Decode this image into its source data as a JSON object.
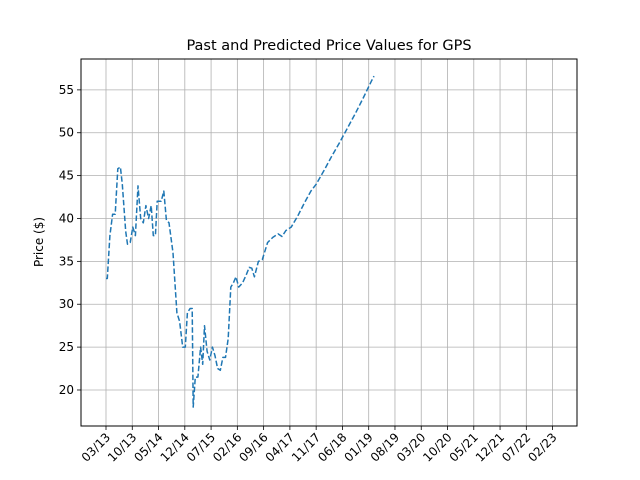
{
  "chart_data": {
    "type": "line",
    "title": "Past and Predicted Price Values for GPS",
    "xlabel": "",
    "ylabel": "Price ($)",
    "ylim": [
      15.8,
      58.6
    ],
    "grid": true,
    "x_tick_labels": [
      "03/13",
      "10/13",
      "05/14",
      "12/14",
      "07/15",
      "02/16",
      "09/16",
      "04/17",
      "11/17",
      "06/18",
      "01/19",
      "08/19",
      "03/20",
      "10/20",
      "05/21",
      "12/21",
      "07/22",
      "02/23"
    ],
    "y_ticks": [
      20,
      25,
      30,
      35,
      40,
      45,
      50,
      55
    ],
    "line_color": "#1f77b4",
    "line_style": "dashed",
    "series": [
      {
        "values": [
          [
            0.0,
            33.0
          ],
          [
            0.05,
            33.0
          ],
          [
            0.15,
            38.0
          ],
          [
            0.25,
            40.5
          ],
          [
            0.35,
            40.5
          ],
          [
            0.45,
            45.8
          ],
          [
            0.55,
            46.0
          ],
          [
            0.62,
            44.0
          ],
          [
            0.75,
            38.5
          ],
          [
            0.82,
            37.0
          ],
          [
            0.92,
            37.2
          ],
          [
            1.02,
            39.0
          ],
          [
            1.12,
            38.0
          ],
          [
            1.22,
            43.8
          ],
          [
            1.32,
            40.0
          ],
          [
            1.42,
            39.5
          ],
          [
            1.52,
            41.5
          ],
          [
            1.62,
            40.0
          ],
          [
            1.72,
            41.5
          ],
          [
            1.8,
            38.0
          ],
          [
            1.88,
            38.0
          ],
          [
            1.95,
            42.0
          ],
          [
            2.1,
            42.0
          ],
          [
            2.2,
            43.2
          ],
          [
            2.3,
            39.8
          ],
          [
            2.4,
            39.5
          ],
          [
            2.55,
            36.0
          ],
          [
            2.7,
            29.0
          ],
          [
            2.8,
            28.0
          ],
          [
            2.92,
            25.0
          ],
          [
            3.02,
            25.0
          ],
          [
            3.1,
            29.0
          ],
          [
            3.2,
            29.5
          ],
          [
            3.28,
            29.5
          ],
          [
            3.32,
            18.0
          ],
          [
            3.4,
            21.5
          ],
          [
            3.5,
            21.5
          ],
          [
            3.6,
            25.0
          ],
          [
            3.68,
            23.0
          ],
          [
            3.75,
            27.5
          ],
          [
            3.85,
            24.5
          ],
          [
            3.95,
            23.5
          ],
          [
            4.05,
            25.0
          ],
          [
            4.15,
            24.0
          ],
          [
            4.25,
            22.5
          ],
          [
            4.35,
            22.3
          ],
          [
            4.45,
            23.8
          ],
          [
            4.55,
            23.8
          ],
          [
            4.65,
            26.0
          ],
          [
            4.75,
            32.0
          ],
          [
            4.85,
            32.5
          ],
          [
            4.95,
            33.2
          ],
          [
            5.05,
            32.0
          ],
          [
            5.2,
            32.5
          ],
          [
            5.35,
            33.5
          ],
          [
            5.45,
            34.3
          ],
          [
            5.55,
            34.2
          ],
          [
            5.65,
            33.2
          ],
          [
            5.8,
            35.0
          ],
          [
            5.95,
            35.2
          ],
          [
            6.15,
            37.2
          ],
          [
            6.35,
            37.8
          ],
          [
            6.55,
            38.2
          ],
          [
            6.7,
            37.9
          ],
          [
            6.85,
            38.6
          ],
          [
            7.05,
            39.0
          ],
          [
            7.3,
            40.3
          ],
          [
            7.55,
            41.8
          ],
          [
            7.8,
            43.2
          ],
          [
            8.0,
            44.0
          ],
          [
            8.3,
            45.6
          ],
          [
            8.6,
            47.3
          ],
          [
            8.9,
            48.9
          ],
          [
            9.2,
            50.6
          ],
          [
            9.5,
            52.3
          ],
          [
            9.8,
            54.1
          ],
          [
            10.1,
            56.0
          ],
          [
            10.2,
            56.6
          ]
        ]
      }
    ]
  }
}
